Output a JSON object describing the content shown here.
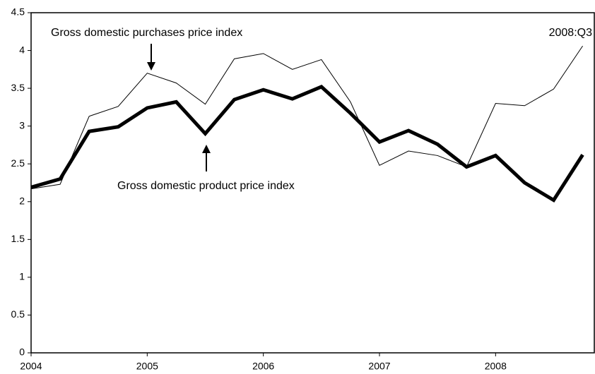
{
  "chart_data": {
    "type": "line",
    "x": [
      2004,
      2004.25,
      2004.5,
      2004.75,
      2005,
      2005.25,
      2005.5,
      2005.75,
      2006,
      2006.25,
      2006.5,
      2006.75,
      2007,
      2007.25,
      2007.5,
      2007.75,
      2008,
      2008.25,
      2008.5,
      2008.75
    ],
    "series": [
      {
        "name": "Gross domestic purchases price index",
        "color": "#000000",
        "width": 1,
        "values": [
          2.17,
          2.23,
          3.13,
          3.26,
          3.7,
          3.57,
          3.29,
          3.89,
          3.96,
          3.75,
          3.88,
          3.32,
          2.48,
          2.67,
          2.61,
          2.46,
          3.3,
          3.27,
          3.49,
          4.06
        ]
      },
      {
        "name": "Gross domestic product price index",
        "color": "#000000",
        "width": 5,
        "values": [
          2.19,
          2.3,
          2.93,
          2.99,
          3.24,
          3.32,
          2.9,
          3.35,
          3.48,
          3.36,
          3.52,
          3.17,
          2.79,
          2.94,
          2.76,
          2.46,
          2.61,
          2.25,
          2.02,
          2.62
        ]
      }
    ],
    "annotations": [
      "2008:Q3"
    ],
    "xlim": [
      2004,
      2008.85
    ],
    "xticks": [
      2004,
      2005,
      2006,
      2007,
      2008
    ],
    "ylim": [
      0,
      4.5
    ],
    "yticks": [
      0,
      0.5,
      1,
      1.5,
      2,
      2.5,
      3,
      3.5,
      4,
      4.5
    ],
    "grid": false
  }
}
